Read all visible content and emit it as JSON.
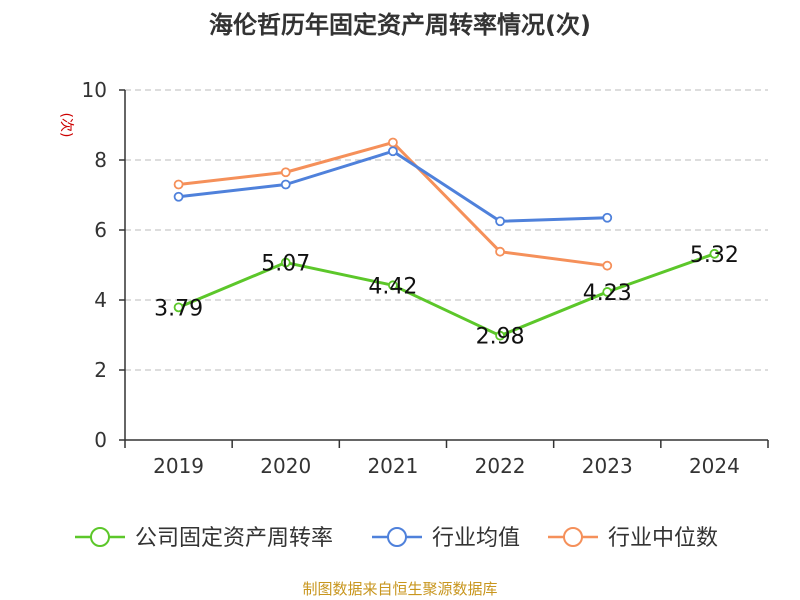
{
  "chart_data": {
    "type": "line",
    "title": "海伦哲历年固定资产周转率情况(次)",
    "ylabel": "(次)",
    "xlabel": "",
    "categories": [
      "2019",
      "2020",
      "2021",
      "2022",
      "2023",
      "2024"
    ],
    "ylim": [
      0,
      10
    ],
    "yticks": [
      0,
      2,
      4,
      6,
      8,
      10
    ],
    "grid": true,
    "legend_position": "bottom",
    "series": [
      {
        "name": "公司固定资产周转率",
        "color": "#5cc72a",
        "values": [
          3.79,
          5.07,
          4.42,
          2.98,
          4.23,
          5.32
        ],
        "labels": [
          "3.79",
          "5.07",
          "4.42",
          "2.98",
          "4.23",
          "5.32"
        ]
      },
      {
        "name": "行业均值",
        "color": "#4f81db",
        "values": [
          6.95,
          7.3,
          8.25,
          6.25,
          6.35,
          null
        ]
      },
      {
        "name": "行业中位数",
        "color": "#f5905a",
        "values": [
          7.3,
          7.65,
          8.5,
          5.38,
          4.98,
          null
        ]
      }
    ]
  },
  "source": "制图数据来自恒生聚源数据库"
}
